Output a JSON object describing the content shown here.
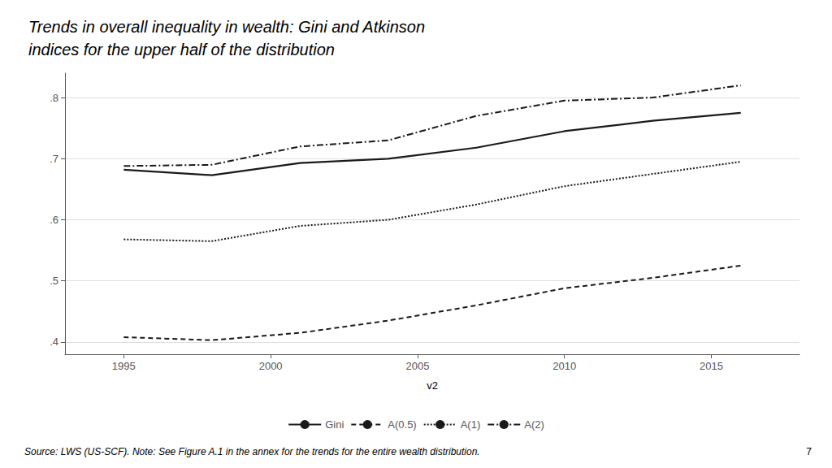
{
  "chart_data": {
    "type": "line",
    "title": "Trends in overall inequality in wealth: Gini and Atkinson\nindices for the upper half of the distribution",
    "x_label": "v2",
    "annotations": [
      "Source: LWS (US-SCF). Note: See Figure A.1 in the annex for the trends for the entire wealth distribution.",
      "7"
    ],
    "x": [
      1995,
      1998,
      2001,
      2004,
      2007,
      2010,
      2013,
      2016
    ],
    "series": [
      {
        "name": "Gini",
        "color": "#1a1a1a",
        "line_style": "solid",
        "values": [
          0.682,
          0.673,
          0.693,
          0.7,
          0.718,
          0.745,
          0.762,
          0.775
        ]
      },
      {
        "name": "A(0.5)",
        "color": "#1a1a1a",
        "line_style": "dashed",
        "values": [
          0.408,
          0.403,
          0.415,
          0.435,
          0.46,
          0.488,
          0.505,
          0.525
        ]
      },
      {
        "name": "A(1)",
        "color": "#1a1a1a",
        "line_style": "dotted",
        "values": [
          0.568,
          0.565,
          0.59,
          0.6,
          0.625,
          0.655,
          0.675,
          0.695
        ]
      },
      {
        "name": "A(2)",
        "color": "#1a1a1a",
        "line_style": "dashdot",
        "values": [
          0.688,
          0.69,
          0.72,
          0.73,
          0.77,
          0.795,
          0.8,
          0.82
        ]
      }
    ],
    "xlim": [
      1993,
      2018
    ],
    "xticks": [
      1995,
      2000,
      2005,
      2010,
      2015
    ],
    "ylim": [
      0.38,
      0.84
    ],
    "yticks": [
      {
        "value": 0.4,
        "label": ".4"
      },
      {
        "value": 0.5,
        "label": ".5"
      },
      {
        "value": 0.6,
        "label": ".6"
      },
      {
        "value": 0.7,
        "label": ".7"
      },
      {
        "value": 0.8,
        "label": ".8"
      }
    ],
    "grid": true,
    "legend": "bottom"
  }
}
